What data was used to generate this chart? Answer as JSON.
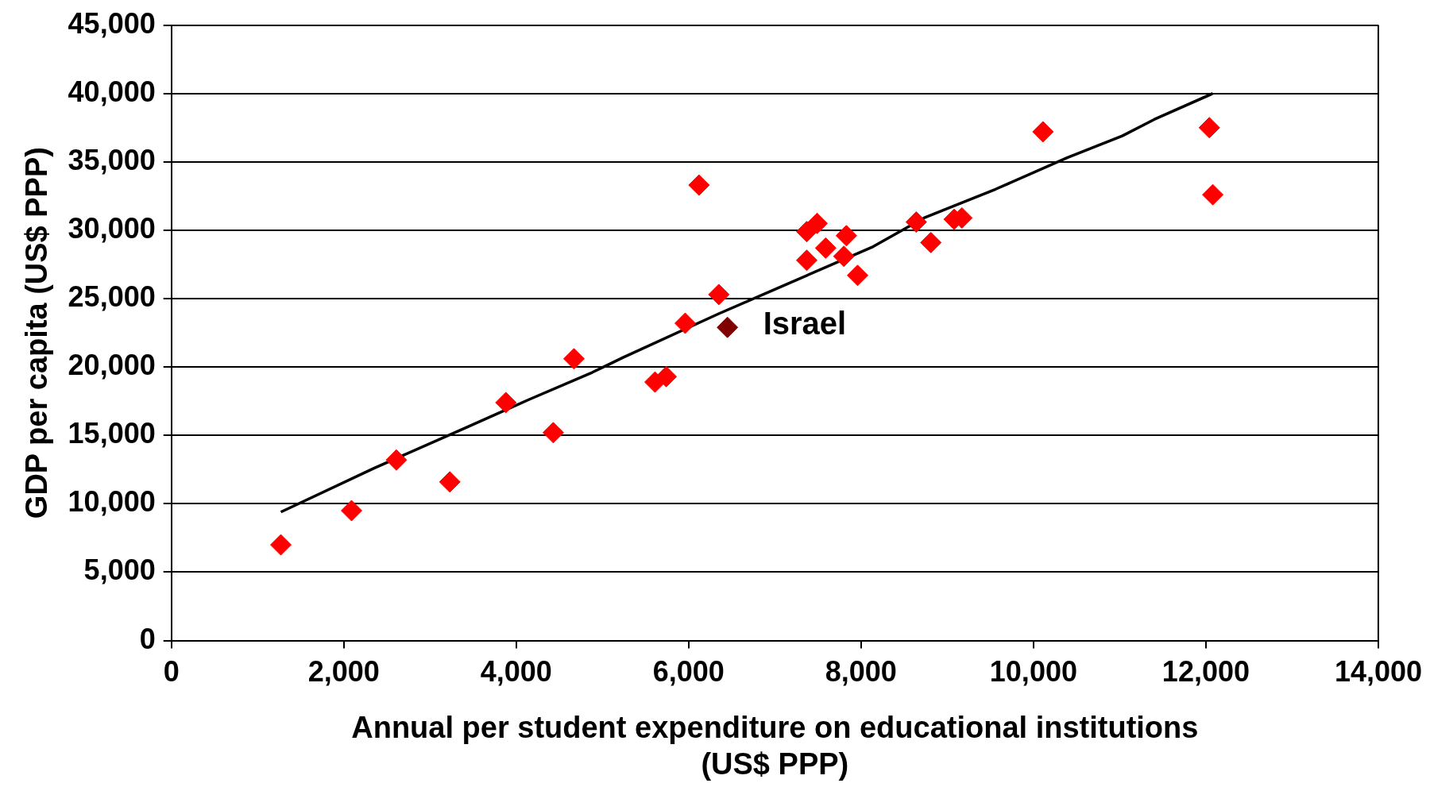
{
  "chart_data": {
    "type": "scatter",
    "xlabel": "Annual per student expenditure on educational institutions\n(US$ PPP)",
    "ylabel": "GDP per capita (US$ PPP)",
    "xlim": [
      0,
      14000
    ],
    "xticks": [
      {
        "value": 0,
        "label": "0"
      },
      {
        "value": 2000,
        "label": "2,000"
      },
      {
        "value": 4000,
        "label": "4,000"
      },
      {
        "value": 6000,
        "label": "6,000"
      },
      {
        "value": 8000,
        "label": "8,000"
      },
      {
        "value": 10000,
        "label": "10,000"
      },
      {
        "value": 12000,
        "label": "12,000"
      },
      {
        "value": 14000,
        "label": "14,000"
      }
    ],
    "ylim": [
      0,
      45000
    ],
    "yticks": [
      {
        "value": 0,
        "label": "0"
      },
      {
        "value": 5000,
        "label": "5,000"
      },
      {
        "value": 10000,
        "label": "10,000"
      },
      {
        "value": 15000,
        "label": "15,000"
      },
      {
        "value": 20000,
        "label": "20,000"
      },
      {
        "value": 25000,
        "label": "25,000"
      },
      {
        "value": 30000,
        "label": "30,000"
      },
      {
        "value": 35000,
        "label": "35,000"
      },
      {
        "value": 40000,
        "label": "40,000"
      },
      {
        "value": 45000,
        "label": "45,000"
      }
    ],
    "grid": "y",
    "legend": false,
    "marker": "diamond",
    "series": [
      {
        "type": "line",
        "marker": "none",
        "color": "#000000",
        "x": [
          1270,
          2350,
          3430,
          4140,
          4880,
          5240,
          6350,
          7080,
          8140,
          8730,
          9560,
          10390,
          11030,
          11400,
          12080
        ],
        "values": [
          9400,
          12600,
          15600,
          17600,
          19600,
          20700,
          23900,
          25900,
          28800,
          30900,
          33000,
          35300,
          36900,
          38100,
          40000
        ]
      },
      {
        "type": "scatter",
        "color": "#ff0000",
        "x": [
          1270,
          2090,
          2610,
          3230,
          3880,
          4430,
          4670,
          5610,
          5740,
          5960,
          6120,
          6350,
          7370,
          7370,
          7490,
          7590,
          7830,
          7800,
          7960,
          8640,
          8810,
          9080,
          9170,
          10110,
          12040,
          12080
        ],
        "values": [
          7000,
          9500,
          13200,
          11600,
          17400,
          15200,
          20600,
          18900,
          19300,
          23200,
          33300,
          25300,
          27800,
          29900,
          30500,
          28700,
          29600,
          28100,
          26700,
          30600,
          29100,
          30800,
          30900,
          37200,
          37500,
          32600
        ]
      },
      {
        "type": "scatter",
        "color": "#800000",
        "x": [
          6450
        ],
        "values": [
          22900
        ]
      }
    ],
    "annotations": [
      {
        "text": "Israel",
        "x": 6450,
        "y": 22900
      }
    ]
  }
}
